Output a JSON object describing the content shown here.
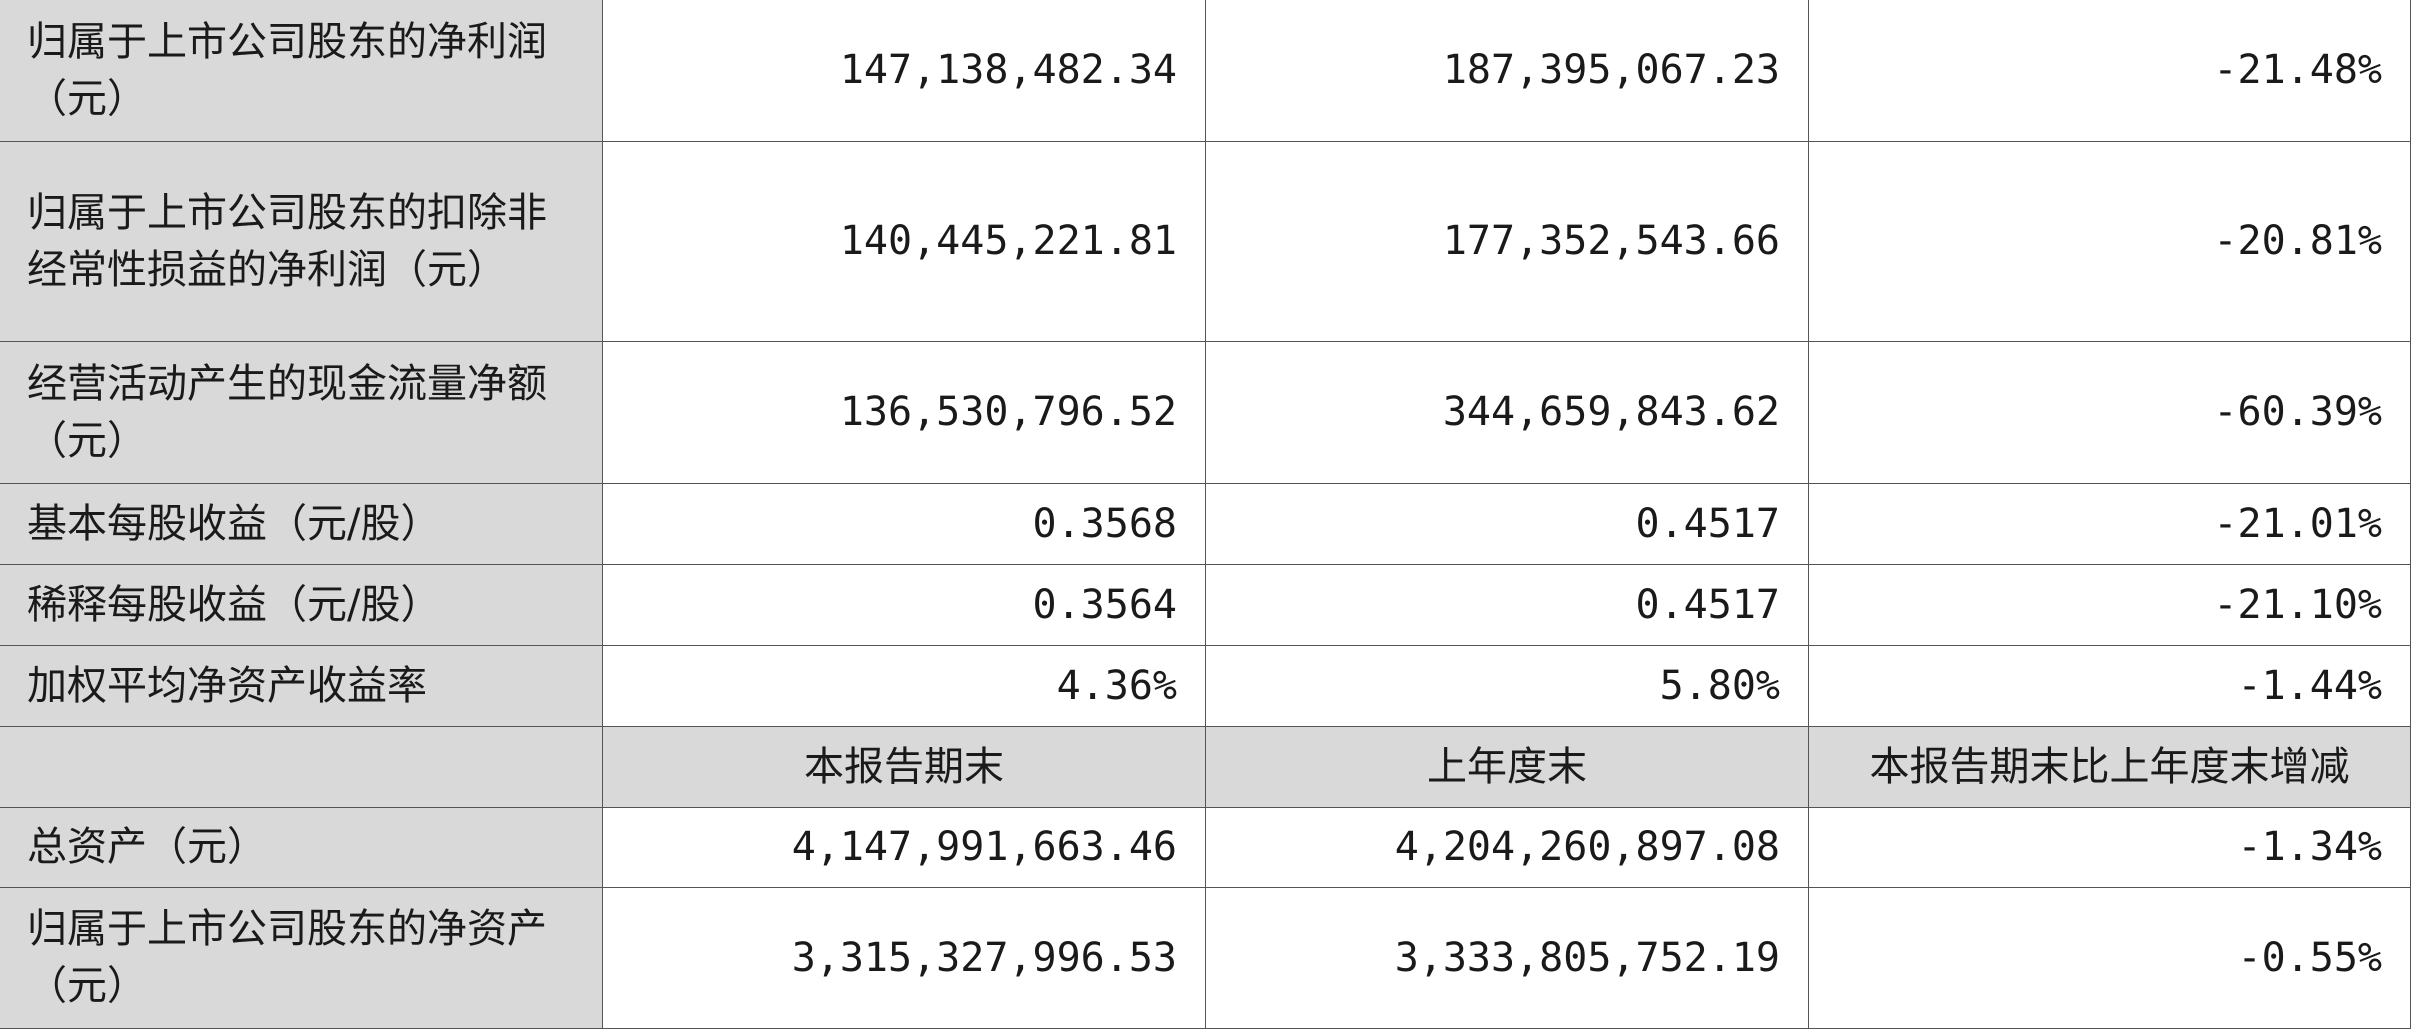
{
  "rows_top": [
    {
      "label": "归属于上市公司股东的净利润（元）",
      "current": "147,138,482.34",
      "previous": "187,395,067.23",
      "change": "-21.48%"
    },
    {
      "label": "归属于上市公司股东的扣除非经常性损益的净利润（元）",
      "current": "140,445,221.81",
      "previous": "177,352,543.66",
      "change": "-20.81%"
    },
    {
      "label": "经营活动产生的现金流量净额（元）",
      "current": "136,530,796.52",
      "previous": "344,659,843.62",
      "change": "-60.39%"
    },
    {
      "label": "基本每股收益（元/股）",
      "current": "0.3568",
      "previous": "0.4517",
      "change": "-21.01%"
    },
    {
      "label": "稀释每股收益（元/股）",
      "current": "0.3564",
      "previous": "0.4517",
      "change": "-21.10%"
    },
    {
      "label": "加权平均净资产收益率",
      "current": "4.36%",
      "previous": "5.80%",
      "change": "-1.44%"
    }
  ],
  "sub_header": {
    "blank": "",
    "current": "本报告期末",
    "previous": "上年度末",
    "change": "本报告期末比上年度末增减"
  },
  "rows_bottom": [
    {
      "label": "总资产（元）",
      "current": "4,147,991,663.46",
      "previous": "4,204,260,897.08",
      "change": "-1.34%"
    },
    {
      "label": "归属于上市公司股东的净资产（元）",
      "current": "3,315,327,996.53",
      "previous": "3,333,805,752.19",
      "change": "-0.55%"
    }
  ]
}
